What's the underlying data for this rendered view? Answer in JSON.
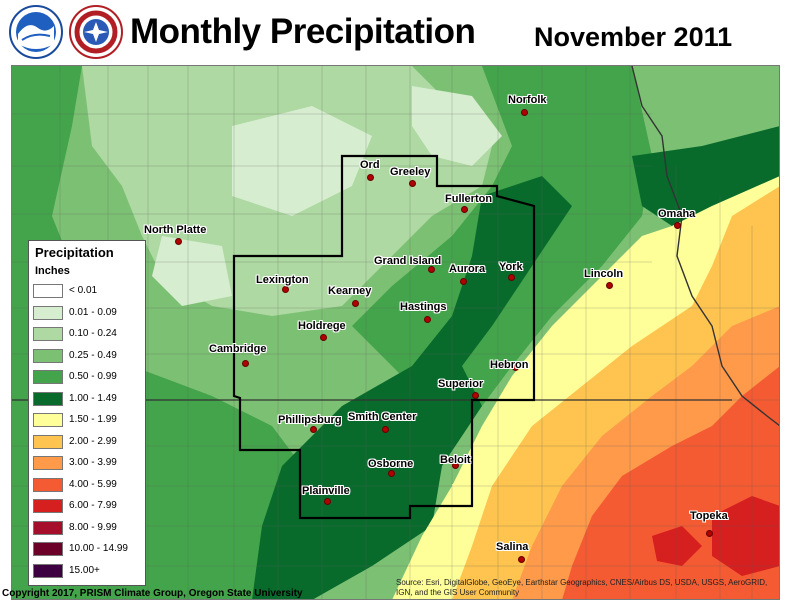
{
  "title": "Monthly Precipitation",
  "period": "November 2011",
  "logos": {
    "left": "noaa-logo",
    "right": "nws-logo"
  },
  "legend": {
    "title": "Precipitation",
    "units": "Inches",
    "classes": [
      {
        "label": "< 0.01",
        "color": "#ffffff"
      },
      {
        "label": "0.01 - 0.09",
        "color": "#d6edd0"
      },
      {
        "label": "0.10 - 0.24",
        "color": "#aed9a2"
      },
      {
        "label": "0.25 - 0.49",
        "color": "#7cc173"
      },
      {
        "label": "0.50 - 0.99",
        "color": "#44a44b"
      },
      {
        "label": "1.00 - 1.49",
        "color": "#086b2c"
      },
      {
        "label": "1.50 - 1.99",
        "color": "#ffff99"
      },
      {
        "label": "2.00 - 2.99",
        "color": "#fec44f"
      },
      {
        "label": "3.00 - 3.99",
        "color": "#fe9a4a"
      },
      {
        "label": "4.00 - 5.99",
        "color": "#f45b32"
      },
      {
        "label": "6.00 - 7.99",
        "color": "#d61f1f"
      },
      {
        "label": "8.00 - 9.99",
        "color": "#a50f2b"
      },
      {
        "label": "10.00 - 14.99",
        "color": "#6b0029"
      },
      {
        "label": "15.00+",
        "color": "#3d0040"
      }
    ]
  },
  "cities": [
    {
      "name": "Norfolk"
    },
    {
      "name": "Ord"
    },
    {
      "name": "Greeley"
    },
    {
      "name": "Fullerton"
    },
    {
      "name": "North Platte"
    },
    {
      "name": "Omaha"
    },
    {
      "name": "Grand Island"
    },
    {
      "name": "Aurora"
    },
    {
      "name": "York"
    },
    {
      "name": "Lexington"
    },
    {
      "name": "Kearney"
    },
    {
      "name": "Lincoln"
    },
    {
      "name": "Hastings"
    },
    {
      "name": "Holdrege"
    },
    {
      "name": "Cambridge"
    },
    {
      "name": "Hebron"
    },
    {
      "name": "Superior"
    },
    {
      "name": "Phillipsburg"
    },
    {
      "name": "Smith Center"
    },
    {
      "name": "Beloit"
    },
    {
      "name": "Osborne"
    },
    {
      "name": "Plainville"
    },
    {
      "name": "Topeka"
    },
    {
      "name": "Salina"
    }
  ],
  "copyright": "Copyright 2017, PRISM Climate Group, Oregon State University",
  "attribution": "Source: Esri, DigitalGlobe, GeoEye, Earthstar Geographics, CNES/Airbus DS, USDA, USGS, AeroGRID, IGN, and the GIS User Community"
}
